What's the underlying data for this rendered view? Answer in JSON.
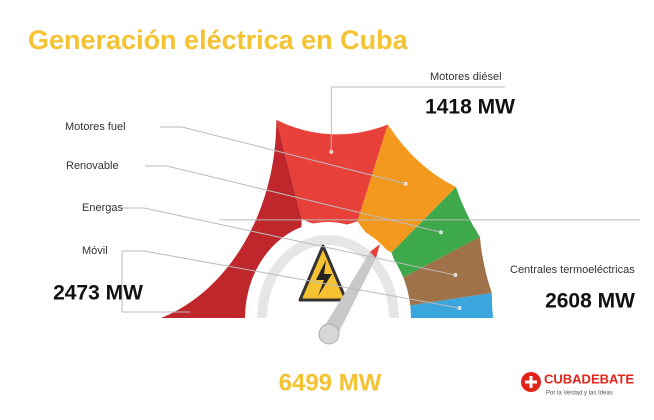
{
  "chart_data": {
    "type": "semi-donut",
    "title": "Generación eléctrica en Cuba",
    "categories": [
      "Móvil",
      "Energas",
      "Renovable",
      "Motores fuel",
      "Motores diésel",
      "Centrales termoeléctricas"
    ],
    "values": [
      250,
      580,
      580,
      1063,
      1418,
      2608
    ],
    "value_labels": [
      null,
      null,
      null,
      null,
      "1418 MW",
      "2608 MW"
    ],
    "colors": [
      "#3aa6dd",
      "#a0724a",
      "#3ea94a",
      "#f39a1e",
      "#e8413a",
      "#c0272d"
    ],
    "group_total": {
      "value": 2473,
      "label": "2473 MW"
    },
    "total": {
      "value": 6499,
      "label": "6499 MW"
    },
    "brand": {
      "name": "CUBADEBATE",
      "tagline": "Por la Verdad y las Ideas"
    }
  }
}
